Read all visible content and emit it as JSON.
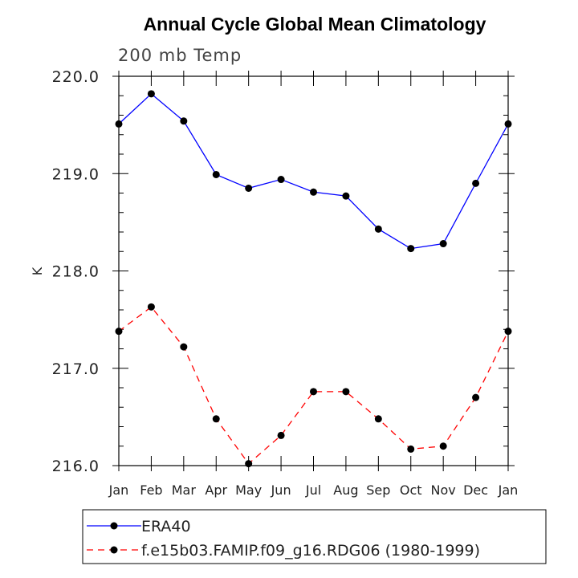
{
  "chart_data": {
    "type": "line",
    "title": "Annual Cycle Global Mean Climatology",
    "subtitle": "200 mb Temp",
    "xlabel": "",
    "ylabel": "K",
    "categories": [
      "Jan",
      "Feb",
      "Mar",
      "Apr",
      "May",
      "Jun",
      "Jul",
      "Aug",
      "Sep",
      "Oct",
      "Nov",
      "Dec",
      "Jan"
    ],
    "ylim": [
      216.0,
      220.0
    ],
    "yticks": [
      "216.0",
      "217.0",
      "218.0",
      "219.0",
      "220.0"
    ],
    "grid": false,
    "legend_position": "bottom",
    "series": [
      {
        "name": "ERA40",
        "color": "#0000ff",
        "dash": "solid",
        "values": [
          219.51,
          219.82,
          219.54,
          218.99,
          218.85,
          218.94,
          218.81,
          218.77,
          218.43,
          218.23,
          218.28,
          218.9,
          219.51
        ]
      },
      {
        "name": "f.e15b03.FAMIP.f09_g16.RDG06 (1980-1999)",
        "color": "#ff0000",
        "dash": "dashed",
        "values": [
          217.38,
          217.63,
          217.22,
          216.48,
          216.02,
          216.31,
          216.76,
          216.76,
          216.48,
          216.17,
          216.2,
          216.7,
          217.38
        ]
      }
    ]
  }
}
